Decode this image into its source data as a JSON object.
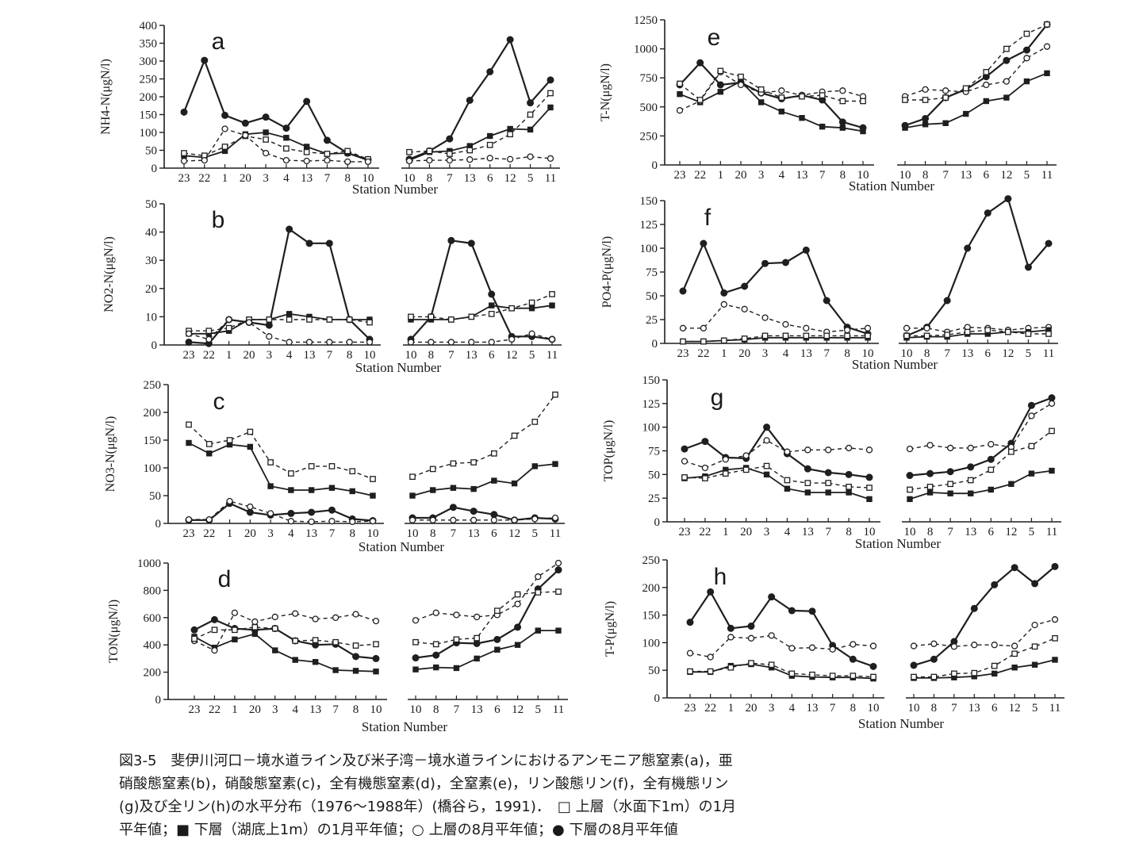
{
  "stations_left": [
    "23",
    "22",
    "1",
    "20",
    "3",
    "4",
    "13",
    "7",
    "8",
    "10"
  ],
  "stations_right": [
    "10",
    "8",
    "7",
    "13",
    "6",
    "12",
    "5",
    "11"
  ],
  "chart_data": [
    {
      "id": "a",
      "type": "line",
      "panel_label": "a",
      "ylabel": "NH4-N(μgN/l)",
      "xlabel": "Station Number",
      "ylim": [
        0,
        400
      ],
      "yticks": [
        0,
        50,
        100,
        150,
        200,
        250,
        300,
        350,
        400
      ],
      "series": [
        {
          "style": "solid",
          "marker": "filled",
          "left": [
            157,
            302,
            148,
            126,
            143,
            112,
            187,
            78,
            42,
            24
          ],
          "right": [
            25,
            48,
            82,
            190,
            270,
            360,
            183,
            247
          ]
        },
        {
          "style": "solid",
          "marker": "square-filled",
          "left": [
            35,
            30,
            48,
            95,
            100,
            85,
            60,
            40,
            42,
            22
          ],
          "right": [
            22,
            45,
            48,
            62,
            90,
            110,
            108,
            170
          ]
        },
        {
          "style": "dashed",
          "marker": "square-open",
          "left": [
            42,
            35,
            60,
            90,
            80,
            55,
            45,
            40,
            48,
            25
          ],
          "right": [
            45,
            48,
            40,
            50,
            65,
            95,
            150,
            210
          ]
        },
        {
          "style": "dashed",
          "marker": "open",
          "left": [
            20,
            22,
            110,
            92,
            42,
            22,
            20,
            22,
            18,
            18
          ],
          "right": [
            20,
            22,
            22,
            24,
            28,
            25,
            32,
            27
          ]
        }
      ]
    },
    {
      "id": "b",
      "type": "line",
      "panel_label": "b",
      "ylabel": "NO2-N(μgN/l)",
      "xlabel": "Station Number",
      "ylim": [
        0,
        50
      ],
      "yticks": [
        0,
        10,
        20,
        30,
        40,
        50
      ],
      "series": [
        {
          "style": "solid",
          "marker": "filled",
          "left": [
            1,
            0.5,
            9,
            8,
            7,
            41,
            36,
            36,
            9,
            2
          ],
          "right": [
            2,
            10,
            37,
            36,
            18,
            3,
            3,
            2
          ]
        },
        {
          "style": "solid",
          "marker": "square-filled",
          "left": [
            4,
            4,
            5,
            9,
            9,
            11,
            10,
            9,
            9,
            9
          ],
          "right": [
            9,
            9,
            9,
            10,
            14,
            13,
            13,
            14
          ]
        },
        {
          "style": "dashed",
          "marker": "square-open",
          "left": [
            5,
            5,
            6,
            9,
            9,
            9,
            9,
            9,
            9,
            8
          ],
          "right": [
            10,
            10,
            9,
            10,
            11,
            13,
            15,
            18
          ]
        },
        {
          "style": "dashed",
          "marker": "open",
          "left": [
            4,
            2,
            9,
            8,
            3,
            1,
            1,
            1,
            1,
            1
          ],
          "right": [
            1,
            1,
            1,
            1,
            1,
            2,
            4,
            2
          ]
        }
      ]
    },
    {
      "id": "c",
      "type": "line",
      "panel_label": "c",
      "ylabel": "NO3-N(μgN/l)",
      "xlabel": "Station Number",
      "ylim": [
        0,
        250
      ],
      "yticks": [
        0,
        50,
        100,
        150,
        200,
        250
      ],
      "series": [
        {
          "style": "solid",
          "marker": "square-filled",
          "left": [
            145,
            126,
            142,
            138,
            67,
            60,
            60,
            64,
            58,
            50
          ],
          "right": [
            50,
            60,
            64,
            62,
            77,
            72,
            103,
            107
          ]
        },
        {
          "style": "dashed",
          "marker": "square-open",
          "left": [
            178,
            143,
            150,
            165,
            110,
            90,
            103,
            103,
            94,
            80
          ],
          "right": [
            84,
            98,
            108,
            110,
            126,
            158,
            183,
            232
          ]
        },
        {
          "style": "solid",
          "marker": "filled",
          "left": [
            6,
            6,
            36,
            20,
            15,
            18,
            20,
            24,
            8,
            5
          ],
          "right": [
            10,
            10,
            29,
            22,
            16,
            6,
            10,
            8
          ]
        },
        {
          "style": "dashed",
          "marker": "open",
          "left": [
            7,
            7,
            40,
            30,
            18,
            4,
            3,
            4,
            3,
            4
          ],
          "right": [
            6,
            6,
            6,
            6,
            6,
            6,
            8,
            10
          ]
        }
      ]
    },
    {
      "id": "d",
      "type": "line",
      "panel_label": "d",
      "ylabel": "TON(μgN/l)",
      "xlabel": "Station Number",
      "ylim": [
        0,
        1000
      ],
      "yticks": [
        0,
        200,
        400,
        600,
        800,
        1000
      ],
      "series": [
        {
          "style": "solid",
          "marker": "filled",
          "left": [
            510,
            585,
            520,
            510,
            520,
            430,
            400,
            405,
            315,
            300
          ],
          "right": [
            305,
            325,
            415,
            410,
            440,
            530,
            810,
            950
          ]
        },
        {
          "style": "solid",
          "marker": "square-filled",
          "left": [
            460,
            380,
            440,
            480,
            360,
            290,
            275,
            215,
            210,
            205
          ],
          "right": [
            220,
            235,
            230,
            300,
            365,
            400,
            505,
            505
          ]
        },
        {
          "style": "dashed",
          "marker": "open",
          "left": [
            430,
            360,
            635,
            570,
            605,
            630,
            590,
            600,
            625,
            575
          ],
          "right": [
            580,
            635,
            620,
            605,
            620,
            700,
            900,
            1000
          ]
        },
        {
          "style": "dashed",
          "marker": "square-open",
          "left": [
            445,
            510,
            510,
            530,
            520,
            430,
            435,
            420,
            395,
            405
          ],
          "right": [
            420,
            405,
            440,
            450,
            650,
            770,
            785,
            790
          ]
        }
      ]
    },
    {
      "id": "e",
      "type": "line",
      "panel_label": "e",
      "ylabel": "T-N(μgN/l)",
      "xlabel": "Station Number",
      "ylim": [
        0,
        1250
      ],
      "yticks": [
        0,
        250,
        500,
        750,
        1000,
        1250
      ],
      "series": [
        {
          "style": "solid",
          "marker": "filled",
          "left": [
            690,
            880,
            690,
            710,
            620,
            570,
            600,
            560,
            370,
            320
          ],
          "right": [
            340,
            400,
            580,
            650,
            760,
            900,
            990,
            1210
          ]
        },
        {
          "style": "solid",
          "marker": "square-filled",
          "left": [
            610,
            540,
            630,
            720,
            540,
            460,
            405,
            330,
            320,
            290
          ],
          "right": [
            320,
            350,
            360,
            440,
            550,
            580,
            720,
            790
          ]
        },
        {
          "style": "dashed",
          "marker": "open",
          "left": [
            470,
            550,
            800,
            690,
            620,
            640,
            600,
            630,
            640,
            590
          ],
          "right": [
            590,
            650,
            640,
            630,
            690,
            720,
            920,
            1020
          ]
        },
        {
          "style": "dashed",
          "marker": "square-open",
          "left": [
            700,
            560,
            810,
            760,
            650,
            580,
            590,
            600,
            550,
            550
          ],
          "right": [
            560,
            560,
            580,
            660,
            800,
            1000,
            1130,
            1210
          ]
        }
      ]
    },
    {
      "id": "f",
      "type": "line",
      "panel_label": "f",
      "ylabel": "PO4-P(μgN/l)",
      "xlabel": "Station Number",
      "ylim": [
        0,
        150
      ],
      "yticks": [
        0,
        25,
        50,
        75,
        100,
        125,
        150
      ],
      "series": [
        {
          "style": "solid",
          "marker": "filled",
          "left": [
            55,
            105,
            53,
            60,
            84,
            85,
            98,
            45,
            17,
            10
          ],
          "right": [
            8,
            17,
            45,
            100,
            137,
            152,
            80,
            105
          ]
        },
        {
          "style": "dashed",
          "marker": "open",
          "left": [
            16,
            16,
            41,
            36,
            27,
            20,
            16,
            12,
            14,
            16
          ],
          "right": [
            16,
            16,
            12,
            17,
            16,
            14,
            16,
            17
          ]
        },
        {
          "style": "solid",
          "marker": "square-filled",
          "left": [
            2,
            2,
            3,
            4,
            6,
            6,
            6,
            6,
            6,
            6
          ],
          "right": [
            6,
            7,
            7,
            10,
            10,
            12,
            12,
            14
          ]
        },
        {
          "style": "dashed",
          "marker": "square-open",
          "left": [
            2,
            2,
            3,
            5,
            8,
            8,
            8,
            8,
            8,
            8
          ],
          "right": [
            8,
            8,
            9,
            12,
            14,
            12,
            10,
            10
          ]
        }
      ]
    },
    {
      "id": "g",
      "type": "line",
      "panel_label": "g",
      "ylabel": "TOP(μgN/l)",
      "xlabel": "Station Number",
      "ylim": [
        0,
        150
      ],
      "yticks": [
        0,
        25,
        50,
        75,
        100,
        125,
        150
      ],
      "series": [
        {
          "style": "solid",
          "marker": "filled",
          "left": [
            77,
            85,
            68,
            67,
            100,
            72,
            56,
            52,
            50,
            47
          ],
          "right": [
            49,
            51,
            53,
            58,
            66,
            83,
            123,
            131
          ]
        },
        {
          "style": "solid",
          "marker": "square-filled",
          "left": [
            46,
            48,
            55,
            57,
            50,
            35,
            31,
            31,
            31,
            24
          ],
          "right": [
            24,
            31,
            30,
            30,
            34,
            40,
            51,
            54
          ]
        },
        {
          "style": "dashed",
          "marker": "open",
          "left": [
            64,
            57,
            66,
            70,
            86,
            74,
            76,
            76,
            78,
            76
          ],
          "right": [
            77,
            81,
            78,
            78,
            82,
            79,
            112,
            125
          ]
        },
        {
          "style": "dashed",
          "marker": "square-open",
          "left": [
            47,
            46,
            51,
            55,
            59,
            44,
            41,
            41,
            37,
            36
          ],
          "right": [
            34,
            37,
            40,
            44,
            55,
            74,
            80,
            96
          ]
        }
      ]
    },
    {
      "id": "h",
      "type": "line",
      "panel_label": "h",
      "ylabel": "T-P(μgN/l)",
      "xlabel": "Station Number",
      "ylim": [
        0,
        250
      ],
      "yticks": [
        0,
        50,
        100,
        150,
        200,
        250
      ],
      "series": [
        {
          "style": "solid",
          "marker": "filled",
          "left": [
            137,
            192,
            126,
            130,
            183,
            158,
            157,
            95,
            70,
            57
          ],
          "right": [
            59,
            70,
            102,
            162,
            205,
            236,
            207,
            238
          ]
        },
        {
          "style": "solid",
          "marker": "square-filled",
          "left": [
            47,
            47,
            58,
            61,
            55,
            40,
            38,
            37,
            37,
            35
          ],
          "right": [
            36,
            36,
            37,
            39,
            44,
            55,
            60,
            69
          ]
        },
        {
          "style": "dashed",
          "marker": "open",
          "left": [
            81,
            74,
            110,
            108,
            113,
            90,
            91,
            88,
            97,
            94
          ],
          "right": [
            94,
            98,
            93,
            96,
            96,
            94,
            132,
            142
          ]
        },
        {
          "style": "dashed",
          "marker": "square-open",
          "left": [
            48,
            48,
            55,
            63,
            60,
            44,
            42,
            40,
            40,
            38
          ],
          "right": [
            38,
            38,
            44,
            45,
            58,
            80,
            93,
            108
          ]
        }
      ]
    }
  ],
  "caption": {
    "lines": [
      "図3-5　斐伊川河口－境水道ライン及び米子湾－境水道ラインにおけるアンモニア態窒素(a)，亜",
      "硝酸態窒素(b)，硝酸態窒素(c)，全有機態窒素(d)，全窒素(e)，リン酸態リン(f)，全有機態リン",
      "(g)及び全リン(h)の水平分布（1976～1988年）(橋谷ら，1991)．　□ 上層（水面下1m）の1月",
      "平年値；■ 下層（湖底上1m）の1月平年値；○ 上層の8月平年値；● 下層の8月平年値"
    ]
  }
}
